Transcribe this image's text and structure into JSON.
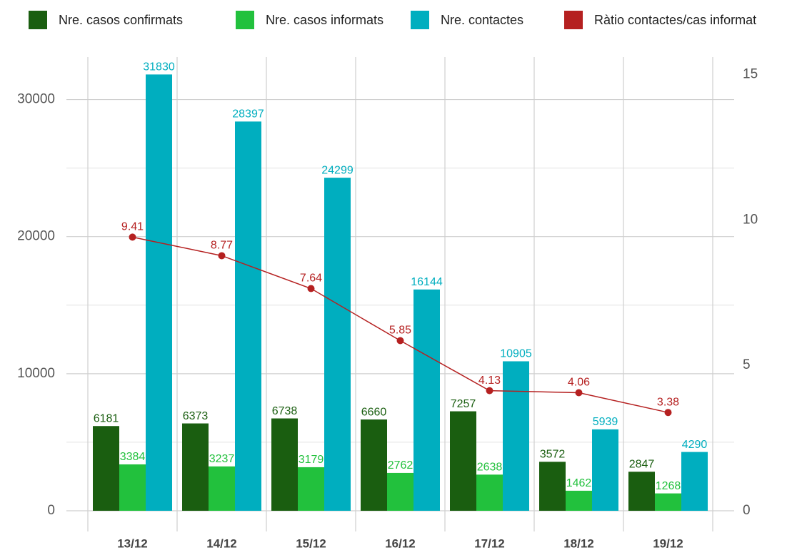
{
  "chart_data": {
    "type": "bar_line",
    "categories": [
      "13/12",
      "14/12",
      "15/12",
      "16/12",
      "17/12",
      "18/12",
      "19/12"
    ],
    "series": [
      {
        "name": "Nre. casos confirmats",
        "color": "#1a5e10",
        "values": [
          6181,
          6373,
          6738,
          6660,
          7257,
          3572,
          2847
        ]
      },
      {
        "name": "Nre. casos informats",
        "color": "#22c13d",
        "values": [
          3384,
          3237,
          3179,
          2762,
          2638,
          1462,
          1268
        ]
      },
      {
        "name": "Nre. contactes",
        "color": "#00aebf",
        "values": [
          31830,
          28397,
          24299,
          16144,
          10905,
          5939,
          4290
        ]
      },
      {
        "name": "Ràtio contactes/cas informat",
        "color": "#b52020",
        "axis": "y2",
        "values": [
          9.41,
          8.77,
          7.64,
          5.85,
          4.13,
          4.06,
          3.38
        ]
      }
    ],
    "ylim": [
      0,
      33100
    ],
    "yticks": [
      0,
      10000,
      20000,
      30000
    ],
    "y_minor_ticks": [
      5000,
      15000,
      25000
    ],
    "y2lim": [
      0,
      15.6
    ],
    "y2ticks": [
      0,
      5,
      10,
      15
    ],
    "grid": true,
    "legend": "top"
  }
}
